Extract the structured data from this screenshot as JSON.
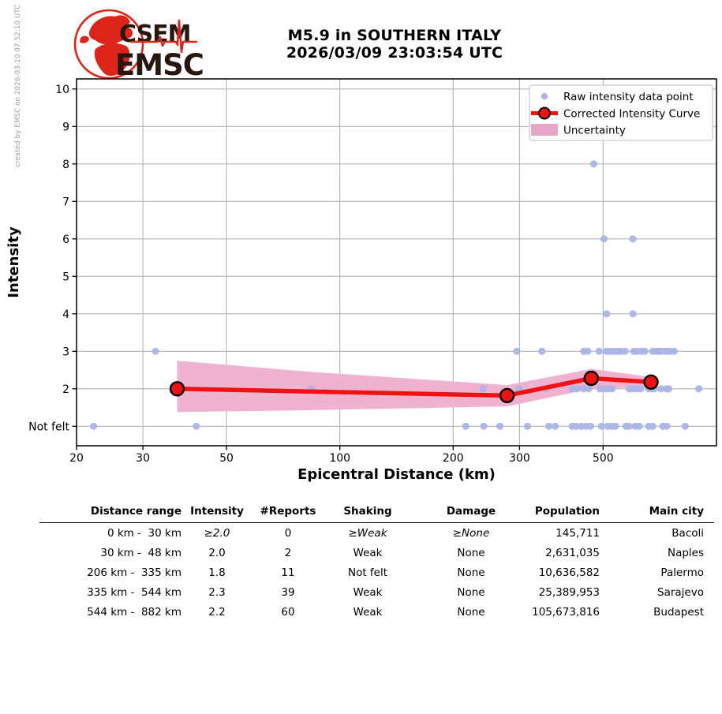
{
  "watermark": "created by EMSC on 2026-03-10 07:52:10 UTC",
  "logo": {
    "acronym_top": "CSEM",
    "acronym_bottom": "EMSC",
    "red": "#dd2418",
    "text_color": "#27170e"
  },
  "title": {
    "line1": "M5.9 in SOUTHERN ITALY",
    "line2": "2026/03/09 23:03:54 UTC"
  },
  "chart_data": {
    "type": "scatter",
    "title": "M5.9 in SOUTHERN ITALY 2026/03/09 23:03:54 UTC",
    "xlabel": "Epicentral Distance (km)",
    "ylabel": "Intensity",
    "x_scale": "log",
    "xlim": [
      20,
      1000
    ],
    "ylim": [
      0.48,
      10.27
    ],
    "grid": true,
    "x_ticks": [
      20,
      30,
      50,
      100,
      200,
      300,
      500
    ],
    "x_gridlines": [
      30,
      50,
      100,
      200,
      300,
      500
    ],
    "y_ticks": [
      {
        "value": 1,
        "label": "Not felt"
      },
      {
        "value": 2,
        "label": "2"
      },
      {
        "value": 3,
        "label": "3"
      },
      {
        "value": 4,
        "label": "4"
      },
      {
        "value": 5,
        "label": "5"
      },
      {
        "value": 6,
        "label": "6"
      },
      {
        "value": 7,
        "label": "7"
      },
      {
        "value": 8,
        "label": "8"
      },
      {
        "value": 9,
        "label": "9"
      },
      {
        "value": 10,
        "label": "10"
      }
    ],
    "legend": [
      {
        "type": "point",
        "label": "Raw intensity data point"
      },
      {
        "type": "line",
        "label": "Corrected Intensity Curve"
      },
      {
        "type": "patch",
        "label": "Uncertainty"
      }
    ],
    "raw_points": [
      [
        22.2,
        1
      ],
      [
        41.6,
        1
      ],
      [
        216,
        1
      ],
      [
        241,
        1
      ],
      [
        266,
        1
      ],
      [
        315,
        1
      ],
      [
        359,
        1
      ],
      [
        373,
        1
      ],
      [
        414,
        1
      ],
      [
        424,
        1
      ],
      [
        437,
        1
      ],
      [
        450,
        1
      ],
      [
        463,
        1
      ],
      [
        495,
        1
      ],
      [
        514,
        1
      ],
      [
        527,
        1
      ],
      [
        539,
        1
      ],
      [
        575,
        1
      ],
      [
        586,
        1
      ],
      [
        609,
        1
      ],
      [
        624,
        1
      ],
      [
        661,
        1
      ],
      [
        677,
        1
      ],
      [
        721,
        1
      ],
      [
        738,
        1
      ],
      [
        826,
        1
      ],
      [
        84,
        2
      ],
      [
        240,
        2
      ],
      [
        299,
        2
      ],
      [
        353,
        2
      ],
      [
        414,
        2
      ],
      [
        427,
        2
      ],
      [
        444,
        2
      ],
      [
        458,
        2
      ],
      [
        490,
        2
      ],
      [
        503,
        2
      ],
      [
        516,
        2
      ],
      [
        528,
        2
      ],
      [
        586,
        2
      ],
      [
        600,
        2
      ],
      [
        614,
        2
      ],
      [
        629,
        2
      ],
      [
        661,
        2
      ],
      [
        674,
        2
      ],
      [
        684,
        2
      ],
      [
        712,
        2
      ],
      [
        736,
        2
      ],
      [
        747,
        2
      ],
      [
        898,
        2
      ],
      [
        32.4,
        3
      ],
      [
        295,
        3
      ],
      [
        344,
        3
      ],
      [
        444,
        3
      ],
      [
        455,
        3
      ],
      [
        488,
        3
      ],
      [
        511,
        3
      ],
      [
        523,
        3
      ],
      [
        535,
        3
      ],
      [
        546,
        3
      ],
      [
        557,
        3
      ],
      [
        572,
        3
      ],
      [
        603,
        3
      ],
      [
        615,
        3
      ],
      [
        632,
        3
      ],
      [
        645,
        3
      ],
      [
        677,
        3
      ],
      [
        690,
        3
      ],
      [
        703,
        3
      ],
      [
        711,
        3
      ],
      [
        730,
        3
      ],
      [
        742,
        3
      ],
      [
        752,
        3
      ],
      [
        772,
        3
      ],
      [
        511,
        4
      ],
      [
        600,
        4
      ],
      [
        503,
        6
      ],
      [
        600,
        6
      ],
      [
        472,
        8
      ]
    ],
    "corrected_curve": [
      [
        37,
        2.0
      ],
      [
        278,
        1.82
      ],
      [
        465,
        2.28
      ],
      [
        670,
        2.18
      ]
    ],
    "uncertainty_band": {
      "x": [
        37,
        84,
        278,
        465,
        688
      ],
      "upper": [
        2.75,
        2.45,
        2.1,
        2.53,
        2.3
      ],
      "lower": [
        1.38,
        1.43,
        1.53,
        2.0,
        2.05
      ]
    },
    "colors": {
      "raw_point": "#aab5e6",
      "curve": "#ee1312",
      "band": "#efb3cf",
      "legend_patch": "#e7a6c6",
      "grid": "#b3b3b3",
      "spine": "#000000"
    }
  },
  "table": {
    "headers": [
      "Distance range",
      "Intensity",
      "#Reports",
      "Shaking",
      "Damage",
      "Population",
      "Main city"
    ],
    "rows": [
      [
        "0 km -  30 km",
        "≥2.0",
        "0",
        "≥Weak",
        "≥None",
        "145,711",
        "Bacoli"
      ],
      [
        "30 km -  48 km",
        "2.0",
        "2",
        "Weak",
        "None",
        "2,631,035",
        "Naples"
      ],
      [
        "206 km -  335 km",
        "1.8",
        "11",
        "Not felt",
        "None",
        "10,636,582",
        "Palermo"
      ],
      [
        "335 km -  544 km",
        "2.3",
        "39",
        "Weak",
        "None",
        "25,389,953",
        "Sarajevo"
      ],
      [
        "544 km -  882 km",
        "2.2",
        "60",
        "Weak",
        "None",
        "105,673,816",
        "Budapest"
      ]
    ]
  }
}
